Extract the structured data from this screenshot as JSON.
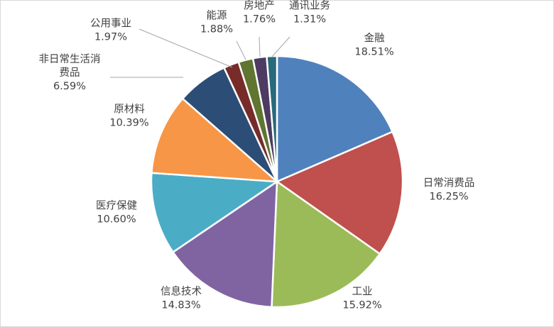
{
  "chart_data": {
    "type": "pie",
    "title": "",
    "slices": [
      {
        "name": "金融",
        "name_lines": [
          "金融"
        ],
        "value": 18.51,
        "label": "18.51%",
        "color": "#4f81bd"
      },
      {
        "name": "日常消费品",
        "name_lines": [
          "日常消费品"
        ],
        "value": 16.25,
        "label": "16.25%",
        "color": "#c0504d"
      },
      {
        "name": "工业",
        "name_lines": [
          "工业"
        ],
        "value": 15.92,
        "label": "15.92%",
        "color": "#9bbb59"
      },
      {
        "name": "信息技术",
        "name_lines": [
          "信息技术"
        ],
        "value": 14.83,
        "label": "14.83%",
        "color": "#8064a2"
      },
      {
        "name": "医疗保健",
        "name_lines": [
          "医疗保健"
        ],
        "value": 10.6,
        "label": "10.60%",
        "color": "#4bacc6"
      },
      {
        "name": "原材料",
        "name_lines": [
          "原材料"
        ],
        "value": 10.39,
        "label": "10.39%",
        "color": "#f79646"
      },
      {
        "name": "非日常生活消费品",
        "name_lines": [
          "非日常生活消",
          "费品"
        ],
        "value": 6.59,
        "label": "6.59%",
        "color": "#2c4d75"
      },
      {
        "name": "公用事业",
        "name_lines": [
          "公用事业"
        ],
        "value": 1.97,
        "label": "1.97%",
        "color": "#772c2a"
      },
      {
        "name": "能源",
        "name_lines": [
          "能源"
        ],
        "value": 1.88,
        "label": "1.88%",
        "color": "#5f7530"
      },
      {
        "name": "房地产",
        "name_lines": [
          "房地产"
        ],
        "value": 1.76,
        "label": "1.76%",
        "color": "#4d3b62"
      },
      {
        "name": "通讯业务",
        "name_lines": [
          "通讯业务"
        ],
        "value": 1.31,
        "label": "1.31%",
        "color": "#276a7c"
      }
    ],
    "start": "12 o'clock",
    "direction": "clockwise",
    "slice_border": "#ffffff"
  }
}
